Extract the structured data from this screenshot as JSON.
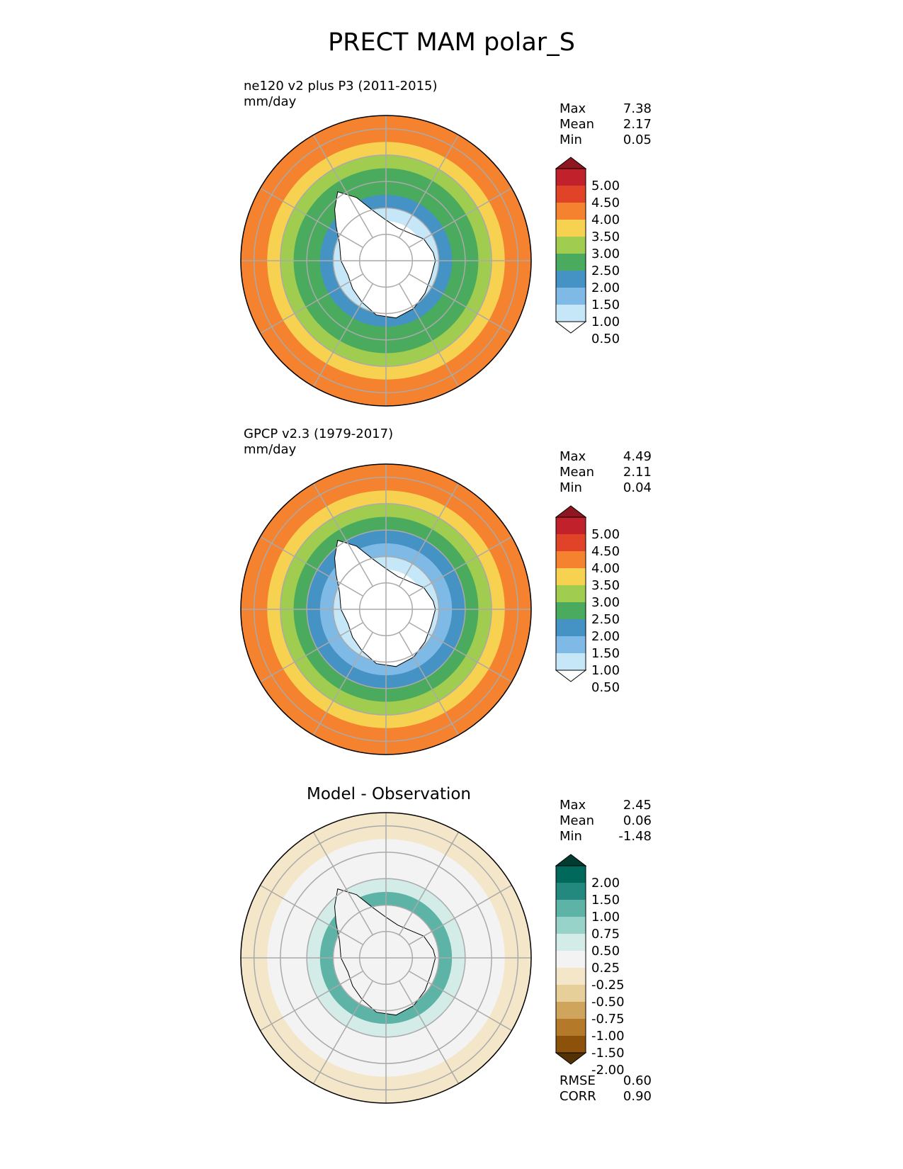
{
  "title": "PRECT MAM polar_S",
  "panels": [
    {
      "id": "model",
      "heading": "",
      "title_line1": "ne120 v2 plus P3 (2011-2015)",
      "title_line2": "mm/day",
      "stats": [
        {
          "label": "Max",
          "value": "7.38"
        },
        {
          "label": "Mean",
          "value": "2.17"
        },
        {
          "label": "Min",
          "value": "0.05"
        }
      ],
      "colorbar": "precip",
      "bands": [
        {
          "lat": -40,
          "value": 3.5
        },
        {
          "lat": -45,
          "value": 3.2
        },
        {
          "lat": -50,
          "value": 2.8
        },
        {
          "lat": -55,
          "value": 2.3
        },
        {
          "lat": -60,
          "value": 2.0
        },
        {
          "lat": -65,
          "value": 1.6
        },
        {
          "lat": -70,
          "value": 0.8
        },
        {
          "lat": -75,
          "value": 0.3
        }
      ]
    },
    {
      "id": "obs",
      "heading": "",
      "title_line1": "GPCP v2.3 (1979-2017)",
      "title_line2": "mm/day",
      "stats": [
        {
          "label": "Max",
          "value": "4.49"
        },
        {
          "label": "Mean",
          "value": "2.11"
        },
        {
          "label": "Min",
          "value": "0.04"
        }
      ],
      "colorbar": "precip",
      "bands": [
        {
          "lat": -40,
          "value": 3.8
        },
        {
          "lat": -45,
          "value": 3.3
        },
        {
          "lat": -50,
          "value": 2.7
        },
        {
          "lat": -55,
          "value": 2.1
        },
        {
          "lat": -60,
          "value": 1.6
        },
        {
          "lat": -65,
          "value": 1.2
        },
        {
          "lat": -70,
          "value": 0.7
        },
        {
          "lat": -75,
          "value": 0.3
        }
      ]
    },
    {
      "id": "diff",
      "heading": "Model - Observation",
      "title_line1": "",
      "title_line2": "",
      "stats": [
        {
          "label": "Max",
          "value": "2.45"
        },
        {
          "label": "Mean",
          "value": "0.06"
        },
        {
          "label": "Min",
          "value": "-1.48"
        }
      ],
      "bottom_stats": [
        {
          "label": "RMSE",
          "value": "0.60"
        },
        {
          "label": "CORR",
          "value": "0.90"
        }
      ],
      "colorbar": "diff",
      "bands": [
        {
          "lat": -40,
          "value": -0.4
        },
        {
          "lat": -45,
          "value": -0.1
        },
        {
          "lat": -50,
          "value": 0.0
        },
        {
          "lat": -55,
          "value": 0.2
        },
        {
          "lat": -60,
          "value": 0.4
        },
        {
          "lat": -65,
          "value": 0.9
        },
        {
          "lat": -70,
          "value": 0.1
        },
        {
          "lat": -75,
          "value": 0.0
        }
      ]
    }
  ],
  "colorbars": {
    "precip": {
      "levels": [
        0.5,
        1.0,
        1.5,
        2.0,
        2.5,
        3.0,
        3.5,
        4.0,
        4.5,
        5.0
      ],
      "labels": [
        "5.00",
        "4.50",
        "4.00",
        "3.50",
        "3.00",
        "2.50",
        "2.00",
        "1.50",
        "1.00",
        "0.50"
      ],
      "colors": [
        "#ffffff",
        "#c6e7f8",
        "#7fbae6",
        "#4592c4",
        "#4aab5e",
        "#a0cd4f",
        "#f6d250",
        "#f4822f",
        "#e04328",
        "#c1212b",
        "#8e1620"
      ]
    },
    "diff": {
      "levels": [
        -2.0,
        -1.5,
        -1.0,
        -0.75,
        -0.5,
        -0.25,
        0.25,
        0.5,
        0.75,
        1.0,
        1.5,
        2.0
      ],
      "labels": [
        "2.00",
        "1.50",
        "1.00",
        "0.75",
        "0.50",
        "0.25",
        "-0.25",
        "-0.50",
        "-0.75",
        "-1.00",
        "-1.50",
        "-2.00"
      ],
      "colors": [
        "#543005",
        "#8c510a",
        "#b5792a",
        "#cfa45d",
        "#e6cf98",
        "#f4e6c8",
        "#f3f3f3",
        "#d3ece8",
        "#97d3c8",
        "#5cb3a6",
        "#23897f",
        "#00695c",
        "#003c30"
      ]
    }
  },
  "chart_data": {
    "type": "heatmap",
    "title": "PRECT MAM polar_S",
    "projection": "south polar stereographic",
    "units": "mm/day",
    "lat_range": [
      -90,
      -35
    ],
    "grid_lats": [
      -40,
      -50,
      -60,
      -70,
      -80
    ],
    "grid_lons": [
      0,
      30,
      60,
      90,
      120,
      150,
      180,
      210,
      240,
      270,
      300,
      330
    ]
  }
}
